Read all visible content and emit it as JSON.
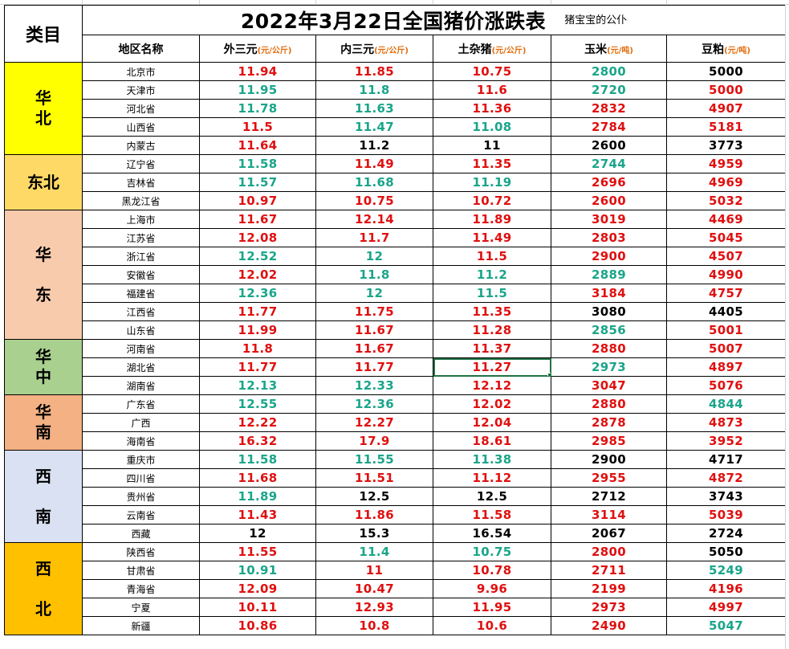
{
  "title": "2022年3月22日全国猪价涨跌表",
  "subtitle": "猪宝宝的公仆",
  "category_header": "类目",
  "columns": {
    "region": "地区名称",
    "c1": "外三元",
    "c1_unit": "(元/公斤)",
    "c2": "内三元",
    "c2_unit": "(元/公斤)",
    "c3": "土杂猪",
    "c3_unit": "(元/公斤)",
    "c4": "玉米",
    "c4_unit": "(元/吨)",
    "c5": "豆粕",
    "c5_unit": "(元/吨)"
  },
  "colors": {
    "up": "#e01010",
    "down": "#1aa58a",
    "flat": "#000000"
  },
  "groups": [
    {
      "name": "华\n北",
      "cls": "r-north",
      "rows": [
        {
          "p": "北京市",
          "v": [
            "11.94",
            "11.85",
            "10.75",
            "2800",
            "5000"
          ],
          "t": [
            "u",
            "u",
            "u",
            "d",
            "e"
          ]
        },
        {
          "p": "天津市",
          "v": [
            "11.95",
            "11.8",
            "11.6",
            "2720",
            "5000"
          ],
          "t": [
            "d",
            "d",
            "u",
            "d",
            "u"
          ]
        },
        {
          "p": "河北省",
          "v": [
            "11.78",
            "11.63",
            "11.36",
            "2832",
            "4907"
          ],
          "t": [
            "d",
            "d",
            "u",
            "u",
            "u"
          ]
        },
        {
          "p": "山西省",
          "v": [
            "11.5",
            "11.47",
            "11.08",
            "2784",
            "5181"
          ],
          "t": [
            "u",
            "d",
            "d",
            "u",
            "u"
          ]
        },
        {
          "p": "内蒙古",
          "v": [
            "11.64",
            "11.2",
            "11",
            "2600",
            "3773"
          ],
          "t": [
            "u",
            "e",
            "e",
            "e",
            "e"
          ]
        }
      ]
    },
    {
      "name": "东北",
      "cls": "r-ne",
      "rows": [
        {
          "p": "辽宁省",
          "v": [
            "11.58",
            "11.49",
            "11.35",
            "2744",
            "4959"
          ],
          "t": [
            "d",
            "u",
            "u",
            "d",
            "u"
          ]
        },
        {
          "p": "吉林省",
          "v": [
            "11.57",
            "11.68",
            "11.19",
            "2696",
            "4969"
          ],
          "t": [
            "d",
            "d",
            "d",
            "u",
            "u"
          ]
        },
        {
          "p": "黑龙江省",
          "v": [
            "10.97",
            "10.75",
            "10.72",
            "2600",
            "5032"
          ],
          "t": [
            "u",
            "u",
            "u",
            "u",
            "u"
          ]
        }
      ]
    },
    {
      "name": "华\n\n东",
      "cls": "r-east",
      "rows": [
        {
          "p": "上海市",
          "v": [
            "11.67",
            "12.14",
            "11.89",
            "3019",
            "4469"
          ],
          "t": [
            "u",
            "u",
            "u",
            "u",
            "u"
          ]
        },
        {
          "p": "江苏省",
          "v": [
            "12.08",
            "11.7",
            "11.49",
            "2803",
            "5045"
          ],
          "t": [
            "u",
            "u",
            "u",
            "u",
            "u"
          ]
        },
        {
          "p": "浙江省",
          "v": [
            "12.52",
            "12",
            "11.5",
            "2900",
            "4507"
          ],
          "t": [
            "d",
            "d",
            "u",
            "u",
            "u"
          ]
        },
        {
          "p": "安徽省",
          "v": [
            "12.02",
            "11.8",
            "11.2",
            "2889",
            "4990"
          ],
          "t": [
            "u",
            "d",
            "d",
            "d",
            "u"
          ]
        },
        {
          "p": "福建省",
          "v": [
            "12.36",
            "12",
            "11.5",
            "3184",
            "4757"
          ],
          "t": [
            "d",
            "d",
            "d",
            "u",
            "u"
          ]
        },
        {
          "p": "江西省",
          "v": [
            "11.77",
            "11.75",
            "11.35",
            "3080",
            "4405"
          ],
          "t": [
            "u",
            "u",
            "u",
            "e",
            "e"
          ]
        },
        {
          "p": "山东省",
          "v": [
            "11.99",
            "11.67",
            "11.28",
            "2856",
            "5001"
          ],
          "t": [
            "u",
            "u",
            "u",
            "d",
            "u"
          ]
        }
      ]
    },
    {
      "name": "华\n中",
      "cls": "r-center",
      "rows": [
        {
          "p": "河南省",
          "v": [
            "11.8",
            "11.67",
            "11.37",
            "2880",
            "5007"
          ],
          "t": [
            "u",
            "u",
            "u",
            "u",
            "u"
          ]
        },
        {
          "p": "湖北省",
          "v": [
            "11.77",
            "11.77",
            "11.27",
            "2973",
            "4897"
          ],
          "t": [
            "u",
            "u",
            "u",
            "d",
            "u"
          ]
        },
        {
          "p": "湖南省",
          "v": [
            "12.13",
            "12.33",
            "12.12",
            "3047",
            "5076"
          ],
          "t": [
            "d",
            "d",
            "u",
            "u",
            "u"
          ]
        }
      ]
    },
    {
      "name": "华\n南",
      "cls": "r-south",
      "rows": [
        {
          "p": "广东省",
          "v": [
            "12.55",
            "12.36",
            "12.02",
            "2880",
            "4844"
          ],
          "t": [
            "d",
            "d",
            "u",
            "u",
            "d"
          ]
        },
        {
          "p": "广西",
          "v": [
            "12.22",
            "12.27",
            "12.04",
            "2878",
            "4873"
          ],
          "t": [
            "u",
            "u",
            "u",
            "u",
            "u"
          ]
        },
        {
          "p": "海南省",
          "v": [
            "16.32",
            "17.9",
            "18.61",
            "2985",
            "3952"
          ],
          "t": [
            "u",
            "u",
            "u",
            "u",
            "u"
          ]
        }
      ]
    },
    {
      "name": "西\n\n南",
      "cls": "r-sw",
      "rows": [
        {
          "p": "重庆市",
          "v": [
            "11.58",
            "11.55",
            "11.38",
            "2900",
            "4717"
          ],
          "t": [
            "d",
            "d",
            "d",
            "e",
            "e"
          ]
        },
        {
          "p": "四川省",
          "v": [
            "11.68",
            "11.51",
            "11.12",
            "2955",
            "4872"
          ],
          "t": [
            "u",
            "u",
            "u",
            "u",
            "u"
          ]
        },
        {
          "p": "贵州省",
          "v": [
            "11.89",
            "12.5",
            "12.5",
            "2712",
            "3743"
          ],
          "t": [
            "d",
            "e",
            "e",
            "e",
            "e"
          ]
        },
        {
          "p": "云南省",
          "v": [
            "11.43",
            "11.86",
            "11.58",
            "3114",
            "5039"
          ],
          "t": [
            "u",
            "u",
            "u",
            "u",
            "u"
          ]
        },
        {
          "p": "西藏",
          "v": [
            "12",
            "15.3",
            "16.54",
            "2067",
            "2724"
          ],
          "t": [
            "e",
            "e",
            "e",
            "e",
            "e"
          ]
        }
      ]
    },
    {
      "name": "西\n\n北",
      "cls": "r-nw",
      "rows": [
        {
          "p": "陕西省",
          "v": [
            "11.55",
            "11.4",
            "10.75",
            "2800",
            "5050"
          ],
          "t": [
            "u",
            "d",
            "d",
            "u",
            "e"
          ]
        },
        {
          "p": "甘肃省",
          "v": [
            "10.91",
            "11",
            "10.78",
            "2711",
            "5249"
          ],
          "t": [
            "d",
            "u",
            "u",
            "u",
            "d"
          ]
        },
        {
          "p": "青海省",
          "v": [
            "12.09",
            "10.47",
            "9.96",
            "2199",
            "4196"
          ],
          "t": [
            "u",
            "u",
            "u",
            "u",
            "u"
          ]
        },
        {
          "p": "宁夏",
          "v": [
            "10.11",
            "12.93",
            "11.95",
            "2973",
            "4997"
          ],
          "t": [
            "u",
            "u",
            "u",
            "u",
            "u"
          ]
        },
        {
          "p": "新疆",
          "v": [
            "10.86",
            "10.8",
            "10.6",
            "2490",
            "5047"
          ],
          "t": [
            "u",
            "u",
            "u",
            "u",
            "d"
          ]
        }
      ]
    }
  ]
}
